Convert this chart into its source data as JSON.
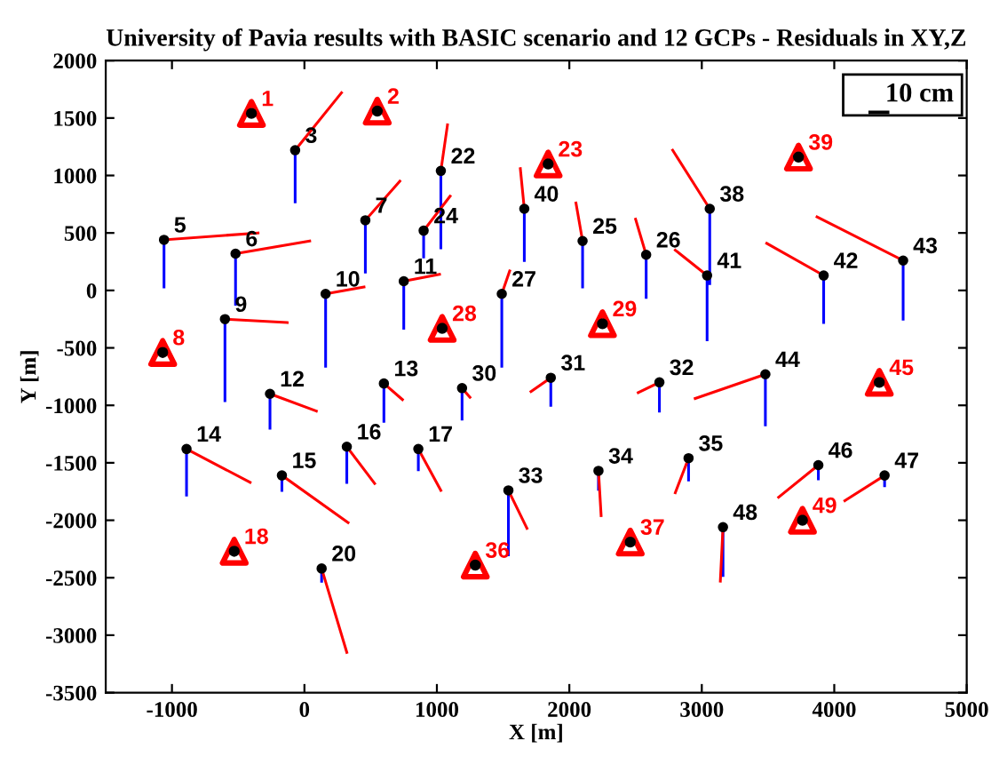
{
  "chart_data": {
    "type": "scatter",
    "title": "University of Pavia results with BASIC scenario and 12 GCPs - Residuals in XY,Z",
    "xlabel": "X [m]",
    "ylabel": "Y [m]",
    "xlim": [
      -1500,
      5000
    ],
    "xticks": [
      -1000,
      0,
      1000,
      2000,
      3000,
      4000,
      5000
    ],
    "ylim": [
      -3500,
      2000
    ],
    "yticks": [
      -3500,
      -3000,
      -2500,
      -2000,
      -1500,
      -1000,
      -500,
      0,
      500,
      1000,
      1500,
      2000
    ],
    "grid": false,
    "annotations": [
      "10 cm",
      {
        "text": "3",
        "x": -70,
        "y": 1220
      },
      {
        "text": "5",
        "x": -1060,
        "y": 440
      },
      {
        "text": "6",
        "x": -520,
        "y": 320
      },
      {
        "text": "7",
        "x": 460,
        "y": 610
      },
      {
        "text": "9",
        "x": -600,
        "y": -250
      },
      {
        "text": "10",
        "x": 160,
        "y": -30
      },
      {
        "text": "11",
        "x": 750,
        "y": 80
      },
      {
        "text": "22",
        "x": 1030,
        "y": 1040
      },
      {
        "text": "24",
        "x": 900,
        "y": 520
      },
      {
        "text": "27",
        "x": 1490,
        "y": -30
      },
      {
        "text": "40",
        "x": 1660,
        "y": 710
      },
      {
        "text": "25",
        "x": 2100,
        "y": 430
      },
      {
        "text": "26",
        "x": 2580,
        "y": 310
      },
      {
        "text": "38",
        "x": 3060,
        "y": 710
      },
      {
        "text": "41",
        "x": 3040,
        "y": 130
      },
      {
        "text": "42",
        "x": 3920,
        "y": 130
      },
      {
        "text": "43",
        "x": 4520,
        "y": 260
      },
      {
        "text": "12",
        "x": -260,
        "y": -900
      },
      {
        "text": "13",
        "x": 600,
        "y": -810
      },
      {
        "text": "30",
        "x": 1190,
        "y": -850
      },
      {
        "text": "14",
        "x": -890,
        "y": -1380
      },
      {
        "text": "16",
        "x": 320,
        "y": -1360
      },
      {
        "text": "15",
        "x": -170,
        "y": -1610
      },
      {
        "text": "17",
        "x": 860,
        "y": -1380
      },
      {
        "text": "33",
        "x": 1540,
        "y": -1740
      },
      {
        "text": "20",
        "x": 130,
        "y": -2420
      },
      {
        "text": "31",
        "x": 1860,
        "y": -760
      },
      {
        "text": "32",
        "x": 2680,
        "y": -800
      },
      {
        "text": "44",
        "x": 3480,
        "y": -730
      },
      {
        "text": "34",
        "x": 2220,
        "y": -1570
      },
      {
        "text": "35",
        "x": 2900,
        "y": -1460
      },
      {
        "text": "46",
        "x": 3880,
        "y": -1520
      },
      {
        "text": "47",
        "x": 4380,
        "y": -1610
      },
      {
        "text": "48",
        "x": 3160,
        "y": -2060
      },
      {
        "text": "1",
        "x": -400,
        "y": 1540
      },
      {
        "text": "2",
        "x": 550,
        "y": 1560
      },
      {
        "text": "23",
        "x": 1840,
        "y": 1100
      },
      {
        "text": "39",
        "x": 3730,
        "y": 1160
      },
      {
        "text": "8",
        "x": -1070,
        "y": -540
      },
      {
        "text": "28",
        "x": 1040,
        "y": -330
      },
      {
        "text": "29",
        "x": 2250,
        "y": -290
      },
      {
        "text": "45",
        "x": 4340,
        "y": -800
      },
      {
        "text": "18",
        "x": -530,
        "y": -2270
      },
      {
        "text": "36",
        "x": 1290,
        "y": -2390
      },
      {
        "text": "37",
        "x": 2460,
        "y": -2190
      },
      {
        "text": "49",
        "x": 3760,
        "y": -2000
      }
    ],
    "series": [
      {
        "type": "line",
        "color": "#0000ff",
        "x": [
          -70,
          -70,
          null,
          -1060,
          -1060,
          null,
          -520,
          -520,
          null,
          460,
          460,
          null,
          -600,
          -600,
          null,
          160,
          160,
          null,
          750,
          750,
          null,
          1030,
          1030,
          null,
          900,
          900,
          null,
          1490,
          1490,
          null,
          1660,
          1660,
          null,
          2100,
          2100,
          null,
          2580,
          2580,
          null,
          3060,
          3060,
          null,
          3040,
          3040,
          null,
          3920,
          3920,
          null,
          4520,
          4520,
          null,
          -260,
          -260,
          null,
          600,
          600,
          null,
          1190,
          1190,
          null,
          -890,
          -890,
          null,
          320,
          320,
          null,
          -170,
          -170,
          null,
          860,
          860,
          null,
          1540,
          1540,
          null,
          130,
          130,
          null,
          1860,
          1860,
          null,
          2680,
          2680,
          null,
          3480,
          3480,
          null,
          2220,
          2220,
          null,
          2900,
          2900,
          null,
          3880,
          3880,
          null,
          4380,
          4380,
          null,
          3160,
          3160
        ],
        "values": [
          1220,
          770,
          null,
          440,
          30,
          null,
          320,
          -120,
          null,
          610,
          160,
          null,
          -250,
          -960,
          null,
          -30,
          -660,
          null,
          80,
          -330,
          null,
          1040,
          370,
          null,
          520,
          290,
          null,
          -30,
          -660,
          null,
          710,
          260,
          null,
          430,
          30,
          null,
          310,
          -60,
          null,
          710,
          60,
          null,
          130,
          -430,
          null,
          130,
          -280,
          null,
          260,
          -250,
          null,
          -900,
          -1200,
          null,
          -810,
          -1140,
          null,
          -850,
          -1120,
          null,
          -1380,
          -1780,
          null,
          -1360,
          -1670,
          null,
          -1610,
          -1740,
          null,
          -1380,
          -1560,
          null,
          -1740,
          -2300,
          null,
          -2420,
          -2530,
          null,
          -760,
          -1000,
          null,
          -800,
          -1050,
          null,
          -730,
          -1170,
          null,
          -1570,
          -1730,
          null,
          -1460,
          -1650,
          null,
          -1520,
          -1640,
          null,
          -1610,
          -1700,
          null,
          -2060,
          -2480
        ]
      },
      {
        "type": "line",
        "color": "#ff0000",
        "x": [
          -70,
          280,
          null,
          -1060,
          -350,
          null,
          -520,
          40,
          null,
          460,
          720,
          null,
          -600,
          -130,
          null,
          160,
          450,
          null,
          750,
          1020,
          null,
          1030,
          1080,
          null,
          900,
          1100,
          null,
          1490,
          1550,
          null,
          1660,
          1630,
          null,
          2100,
          2050,
          null,
          2580,
          2500,
          null,
          3060,
          2780,
          null,
          3040,
          2800,
          null,
          3920,
          3490,
          null,
          4520,
          3870,
          null,
          -260,
          90,
          null,
          600,
          740,
          null,
          1190,
          1250,
          null,
          -890,
          -410,
          null,
          320,
          530,
          null,
          -170,
          330,
          null,
          860,
          1030,
          null,
          1540,
          1680,
          null,
          130,
          320,
          null,
          1860,
          1710,
          null,
          2680,
          2520,
          null,
          3480,
          2950,
          null,
          2220,
          2240,
          null,
          2900,
          2800,
          null,
          3880,
          3580,
          null,
          4380,
          4080,
          null,
          3160,
          3140
        ],
        "values": [
          1220,
          1720,
          null,
          440,
          500,
          null,
          320,
          430,
          null,
          610,
          950,
          null,
          -250,
          -280,
          null,
          -30,
          30,
          null,
          80,
          140,
          null,
          1040,
          1440,
          null,
          520,
          820,
          null,
          -30,
          170,
          null,
          710,
          1060,
          null,
          430,
          760,
          null,
          310,
          620,
          null,
          710,
          1220,
          null,
          130,
          350,
          null,
          130,
          410,
          null,
          260,
          640,
          null,
          -900,
          -1050,
          null,
          -810,
          -950,
          null,
          -850,
          -930,
          null,
          -1380,
          -1670,
          null,
          -1360,
          -1680,
          null,
          -1610,
          -2020,
          null,
          -1380,
          -1740,
          null,
          -1740,
          -2070,
          null,
          -2420,
          -3150,
          null,
          -760,
          -880,
          null,
          -800,
          -890,
          null,
          -730,
          -940,
          null,
          -1570,
          -1960,
          null,
          -1460,
          -1760,
          null,
          -1520,
          -1800,
          null,
          -1610,
          -1830,
          null,
          -2060,
          -2530
        ]
      },
      {
        "color": "#000000",
        "marker": "circle",
        "x": [
          -70,
          -1060,
          -520,
          460,
          -600,
          160,
          750,
          1030,
          900,
          1490,
          1660,
          2100,
          2580,
          3060,
          3040,
          3920,
          4520,
          -260,
          600,
          1190,
          -890,
          320,
          -170,
          860,
          1540,
          130,
          1860,
          2680,
          3480,
          2220,
          2900,
          3880,
          4380,
          3160
        ],
        "values": [
          1220,
          440,
          320,
          610,
          -250,
          -30,
          80,
          1040,
          520,
          -30,
          710,
          430,
          310,
          710,
          130,
          130,
          260,
          -900,
          -810,
          -850,
          -1380,
          -1360,
          -1610,
          -1380,
          -1740,
          -2420,
          -760,
          -800,
          -730,
          -1570,
          -1460,
          -1520,
          -1610,
          -2060
        ]
      },
      {
        "color": "#ff0000",
        "marker": "triangle",
        "x": [
          -400,
          550,
          1840,
          3730,
          -1070,
          1040,
          2250,
          4340,
          -530,
          1290,
          2460,
          3760
        ],
        "values": [
          1540,
          1560,
          1100,
          1160,
          -540,
          -330,
          -290,
          -800,
          -2270,
          -2390,
          -2190,
          -2000
        ]
      }
    ]
  }
}
